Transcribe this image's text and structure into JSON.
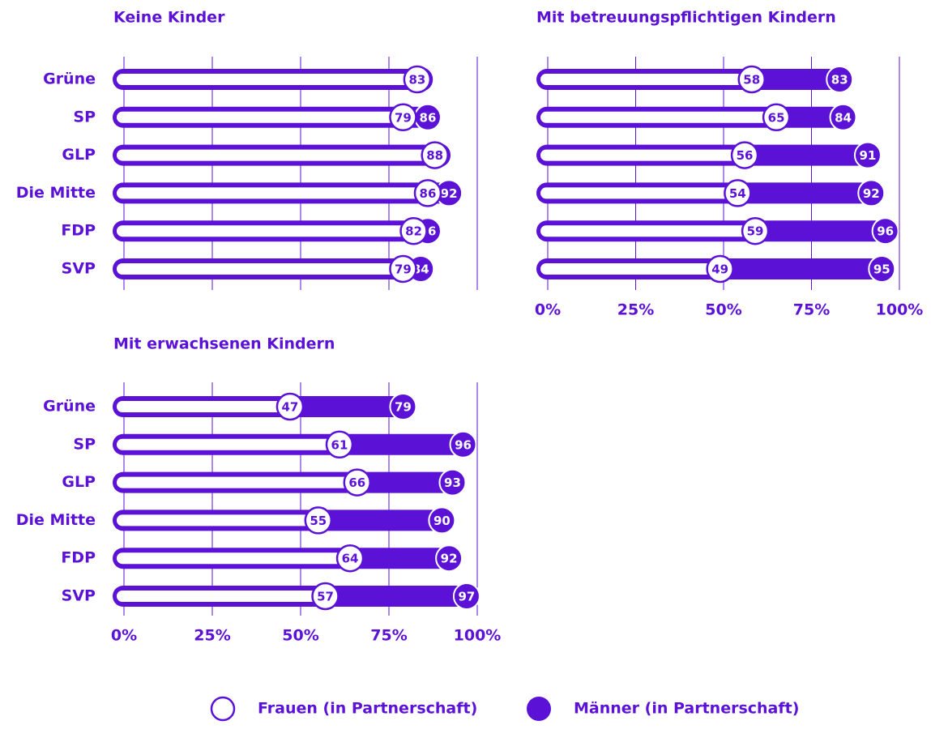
{
  "chart_data": [
    {
      "type": "dumbbell-bar",
      "title": "Keine Kinder",
      "categories": [
        "Grüne",
        "SP",
        "GLP",
        "Die Mitte",
        "FDP",
        "SVP"
      ],
      "series": [
        {
          "name": "Frauen (in Partnerschaft)",
          "color": "#ffffff",
          "values": [
            83,
            79,
            88,
            86,
            82,
            79
          ]
        },
        {
          "name": "Männer (in Partnerschaft)",
          "color": "#5b12d6",
          "values": [
            84,
            86,
            89,
            92,
            86,
            84
          ]
        }
      ],
      "xlim": [
        0,
        100
      ],
      "xticks": [
        0,
        25,
        50,
        75,
        100
      ],
      "grid": true
    },
    {
      "type": "dumbbell-bar",
      "title": "Mit betreuungspflichtigen Kindern",
      "categories": [
        null,
        null,
        null,
        null,
        null,
        null
      ],
      "series": [
        {
          "color": "#ffffff",
          "values": [
            58,
            65,
            56,
            54,
            59,
            49
          ]
        },
        {
          "color": "#5b12d6",
          "values": [
            83,
            84,
            91,
            92,
            96,
            95
          ]
        }
      ],
      "xlim": [
        0,
        100
      ],
      "xticks": [
        {
          "value": 0,
          "label": "0%"
        },
        {
          "value": 25,
          "label": "25%"
        },
        {
          "value": 50,
          "label": "50%"
        },
        {
          "value": 75,
          "label": "75%"
        },
        {
          "value": 100,
          "label": "100%"
        }
      ],
      "grid": true
    },
    {
      "type": "dumbbell-bar",
      "title": "Mit erwachsenen Kindern",
      "categories": [
        "Grüne",
        "SP",
        "GLP",
        "Die Mitte",
        "FDP",
        "SVP"
      ],
      "series": [
        {
          "color": "#ffffff",
          "values": [
            47,
            61,
            66,
            55,
            64,
            57
          ]
        },
        {
          "color": "#5b12d6",
          "values": [
            79,
            96,
            93,
            90,
            92,
            97
          ]
        }
      ],
      "xlim": [
        0,
        100
      ],
      "xticks": [
        {
          "value": 0,
          "label": "0%"
        },
        {
          "value": 25,
          "label": "25%"
        },
        {
          "value": 50,
          "label": "50%"
        },
        {
          "value": 75,
          "label": "75%"
        },
        {
          "value": 100,
          "label": "100%"
        }
      ],
      "grid": true
    }
  ]
}
